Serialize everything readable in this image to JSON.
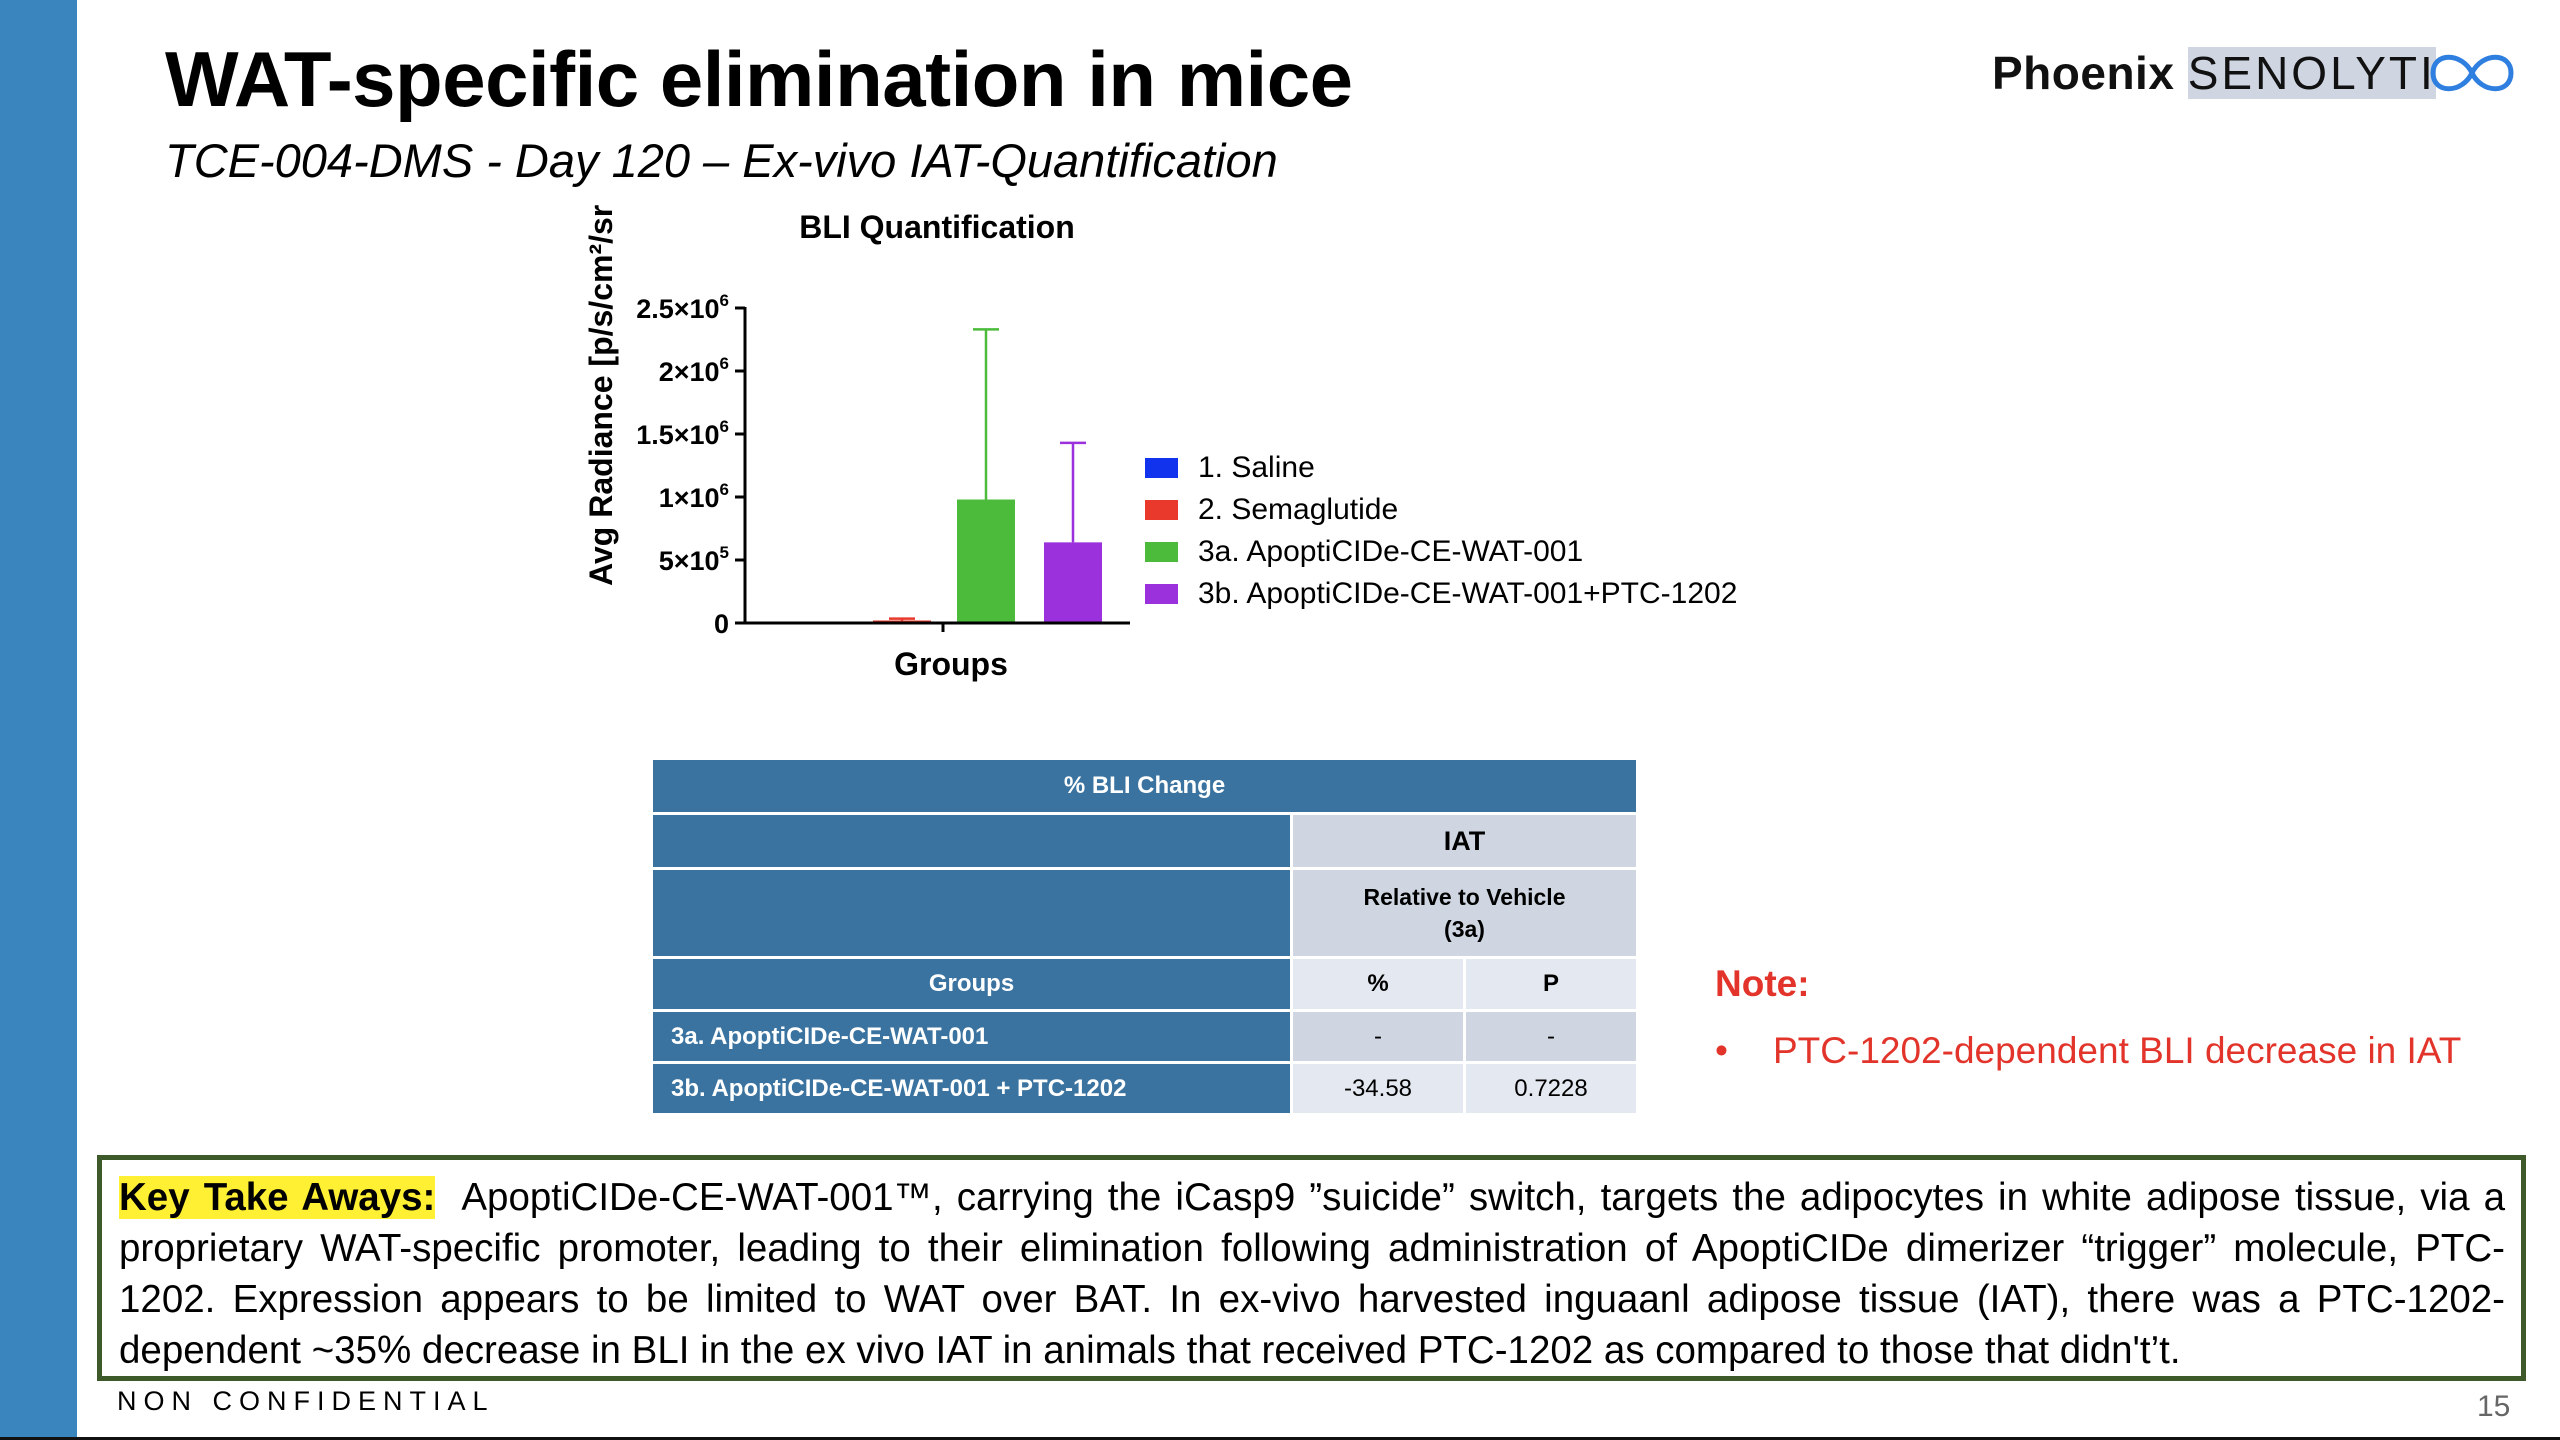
{
  "slide": {
    "title": "WAT-specific elimination in mice",
    "subtitle": "TCE-004-DMS - Day 120 – Ex-vivo IAT-Quantification",
    "page_number": "15",
    "footer": "NON CONFIDENTIAL"
  },
  "logo": {
    "text_bold": "Phoenix",
    "text_light": "SENOLYTI",
    "icon": "infinity-loop-icon",
    "color": "#2f7fe0"
  },
  "colors": {
    "sidebar": "#3a85bd",
    "table_header": "#3a73a0",
    "note": "#e2342a",
    "highlight": "#fff033"
  },
  "chart_data": {
    "type": "bar",
    "title": "BLI Quantification",
    "xlabel": "Groups",
    "ylabel": "Avg Radiance [p/s/cm²/sr]",
    "ylim": [
      0,
      2500000
    ],
    "yticks": [
      {
        "value": 0,
        "base": "0",
        "exp": ""
      },
      {
        "value": 500000,
        "base": "5×10",
        "exp": "5"
      },
      {
        "value": 1000000,
        "base": "1×10",
        "exp": "6"
      },
      {
        "value": 1500000,
        "base": "1.5×10",
        "exp": "6"
      },
      {
        "value": 2000000,
        "base": "2×10",
        "exp": "6"
      },
      {
        "value": 2500000,
        "base": "2.5×10",
        "exp": "6"
      }
    ],
    "legend_position": "right",
    "series": [
      {
        "name": "1. Saline",
        "value": 0,
        "error": 0,
        "color": "#1133ee"
      },
      {
        "name": "2. Semaglutide",
        "value": 20000,
        "error": 15000,
        "color": "#e8392c"
      },
      {
        "name": "3a. ApoptiCIDe-CE-WAT-001",
        "value": 980000,
        "error": 1350000,
        "color": "#4cbb3c"
      },
      {
        "name": "3b. ApoptiCIDe-CE-WAT-001+PTC-1202",
        "value": 640000,
        "error": 790000,
        "color": "#9b30dd"
      }
    ]
  },
  "table": {
    "title": "% BLI Change",
    "col_group": "IAT",
    "col_sub": "Relative to Vehicle",
    "col_sub2": "(3a)",
    "groups_header": "Groups",
    "pct_header": "%",
    "p_header": "P",
    "rows": [
      {
        "group": "3a. ApoptiCIDe-CE-WAT-001",
        "pct": "-",
        "p": "-"
      },
      {
        "group": "3b. ApoptiCIDe-CE-WAT-001 + PTC-1202",
        "pct": "-34.58",
        "p": "0.7228"
      }
    ]
  },
  "note": {
    "title": "Note:",
    "items": [
      "PTC-1202-dependent BLI decrease in IAT"
    ]
  },
  "takeaway": {
    "label": "Key Take Aways:",
    "text": "ApoptiCIDe-CE-WAT-001™, carrying the iCasp9 ”suicide” switch, targets the adipocytes in white adipose tissue, via a proprietary WAT-specific promoter, leading to their elimination following administration of ApoptiCIDe dimerizer “trigger” molecule, PTC-1202. Expression appears to be limited to WAT over BAT.  In ex-vivo harvested inguaanl adipose tissue (IAT), there was a PTC-1202-dependent ~35% decrease in BLI in the ex vivo IAT in animals that received PTC-1202 as compared to those that didn't’t."
  }
}
